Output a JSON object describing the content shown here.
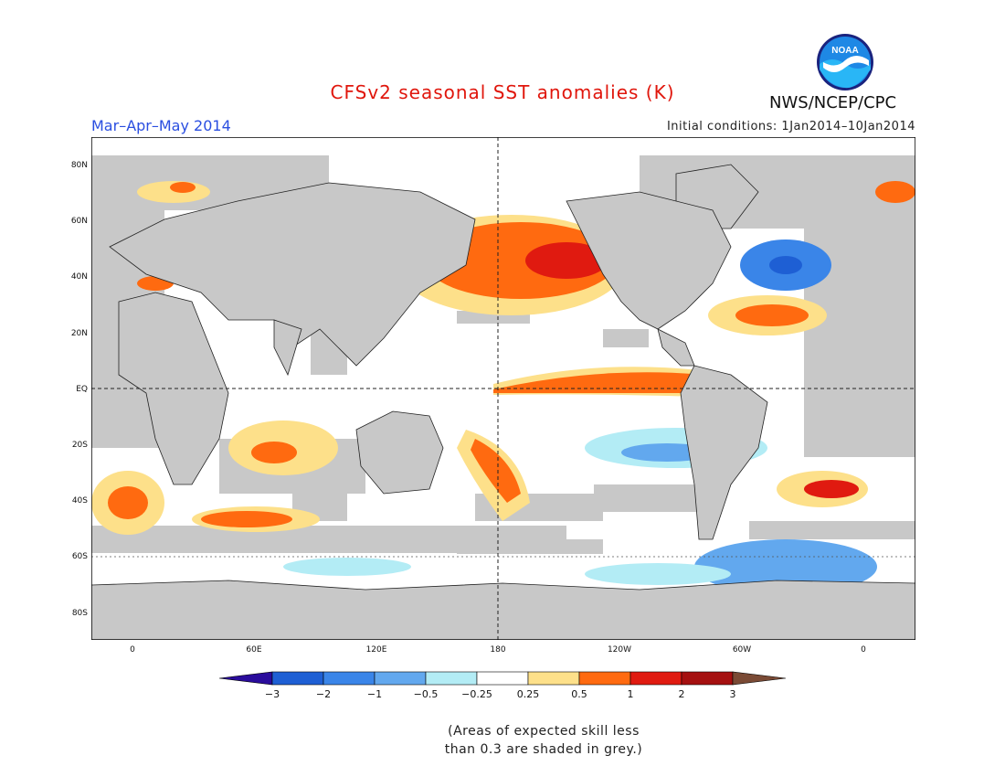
{
  "header": {
    "title": "CFSv2 seasonal SST anomalies (K)",
    "season": "Mar–Apr–May 2014",
    "initial_conditions": "Initial conditions: 1Jan2014–10Jan2014",
    "agency": "NWS/NCEP/CPC",
    "logo_text": "NOAA"
  },
  "map": {
    "lat_labels": [
      "80N",
      "60N",
      "40N",
      "20N",
      "EQ",
      "20S",
      "40S",
      "60S",
      "80S"
    ],
    "lon_labels": [
      "0",
      "60E",
      "120E",
      "180",
      "120W",
      "60W",
      "0"
    ]
  },
  "legend": {
    "units": "K",
    "tick_labels": [
      "−3",
      "−2",
      "−1",
      "−0.5",
      "−0.25",
      "0.25",
      "0.5",
      "1",
      "2",
      "3"
    ],
    "colors": [
      "#2a0c9c",
      "#1e5fd4",
      "#3a85e8",
      "#62a8ee",
      "#b3ecf5",
      "#ffffff",
      "#fde08a",
      "#ff6a10",
      "#e01a10",
      "#a51010",
      "#7a4a35"
    ],
    "skill_mask_color": "#c8c8c8"
  },
  "note": {
    "line1": "(Areas of expected skill less",
    "line2": "than 0.3 are shaded in grey.)"
  }
}
